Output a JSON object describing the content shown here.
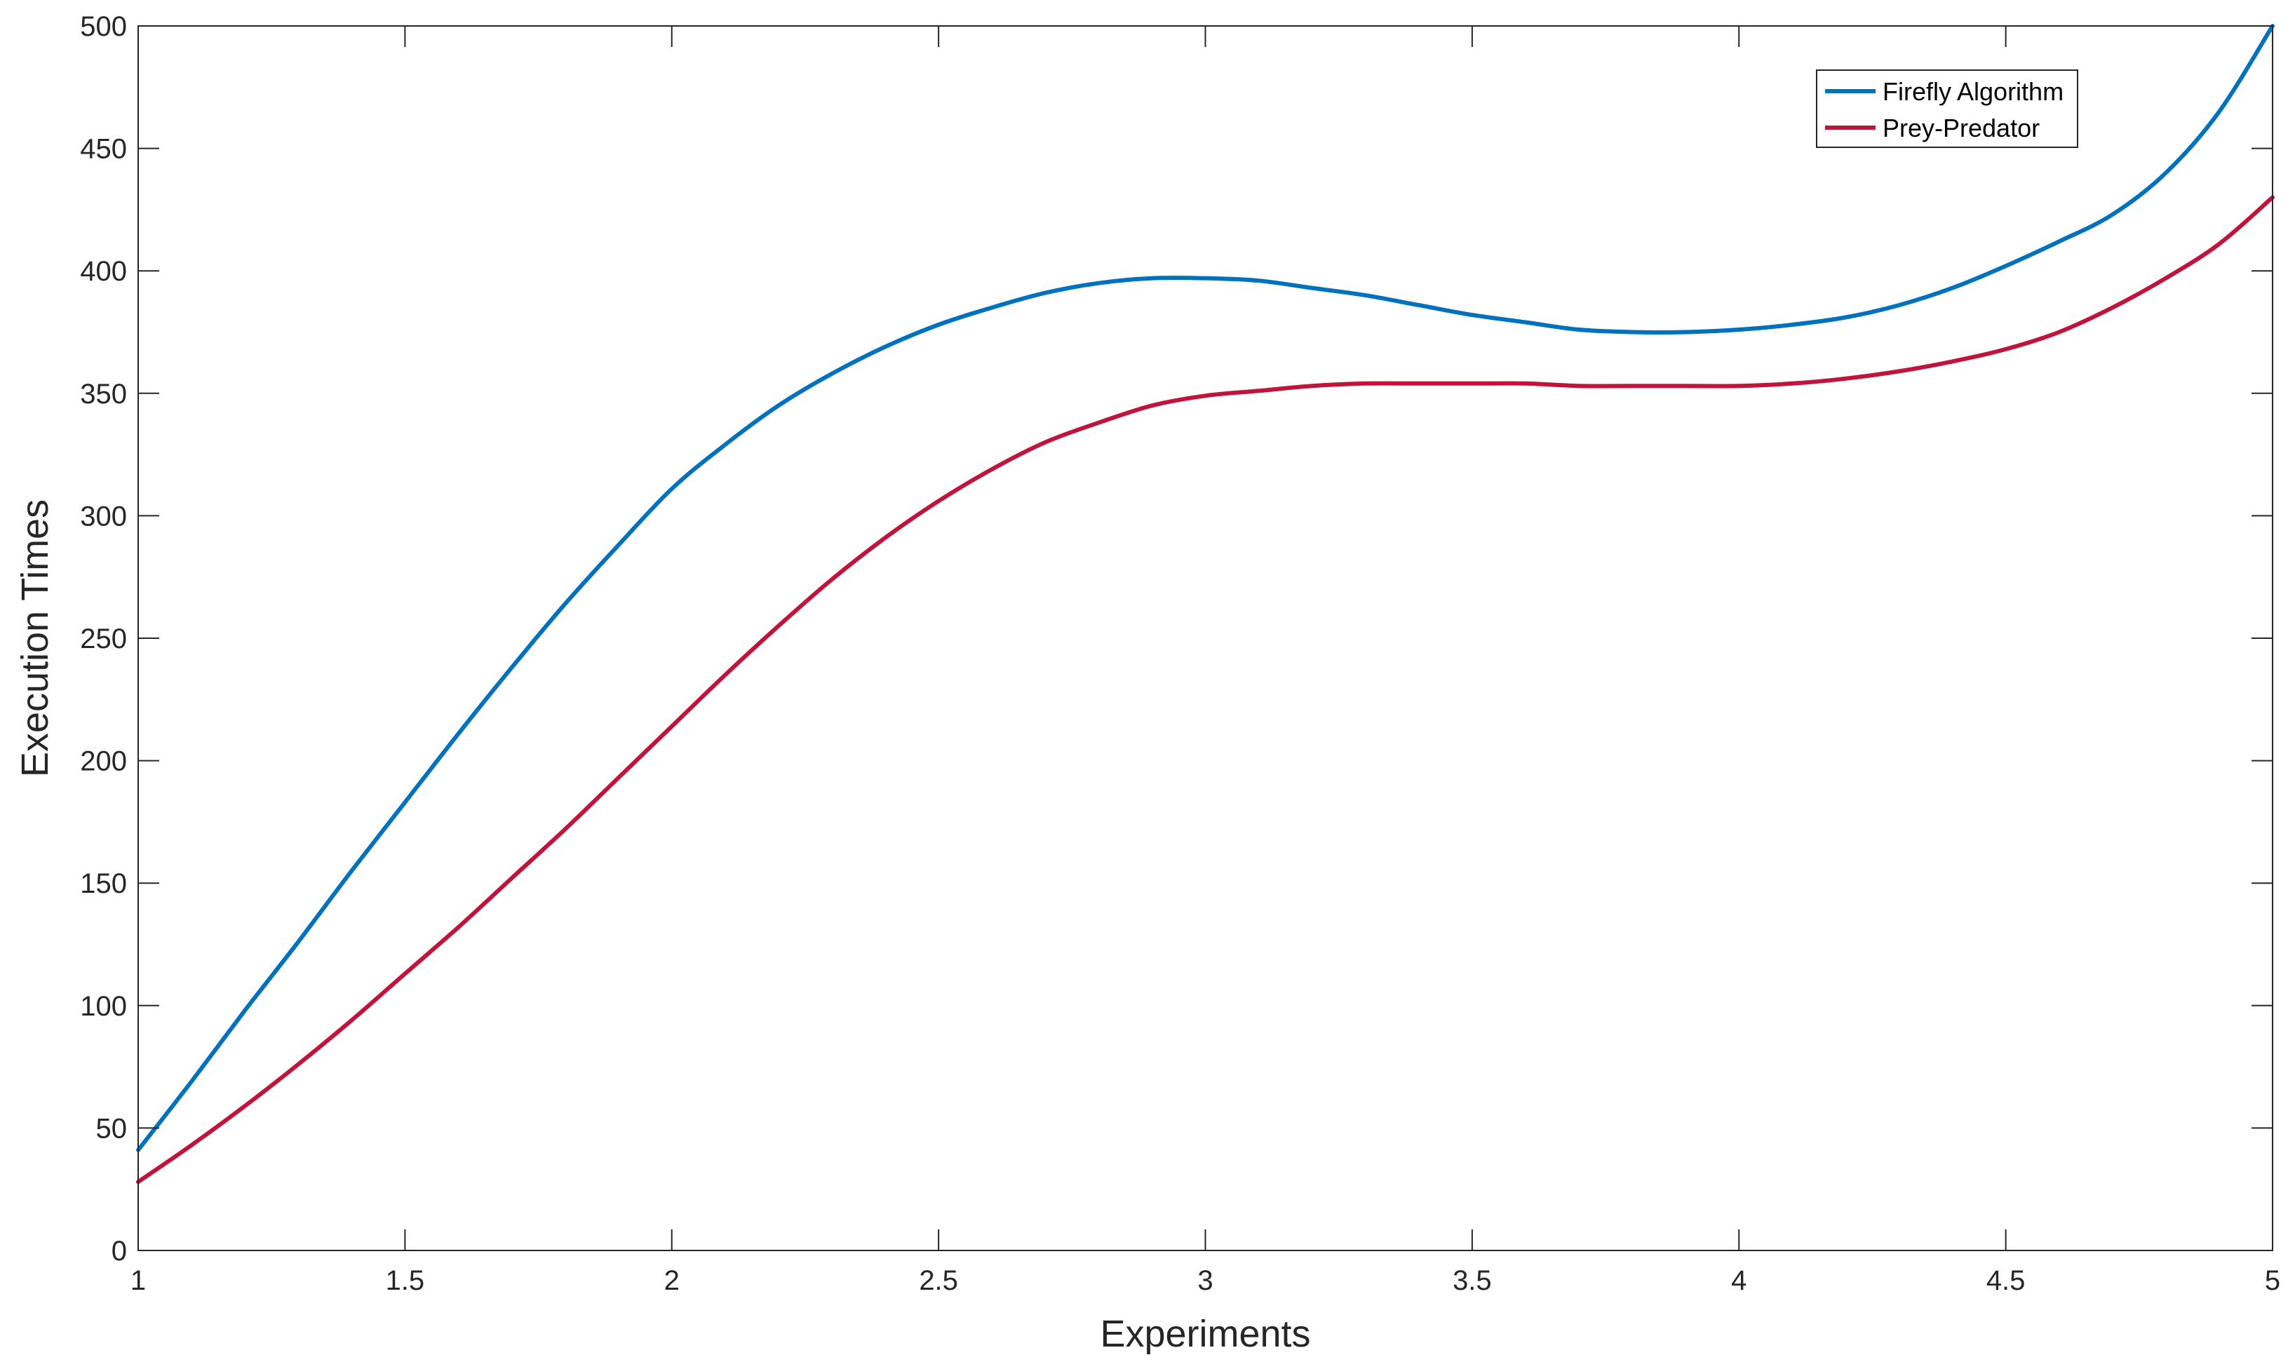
{
  "chart_data": {
    "type": "line",
    "title": "",
    "xlabel": "Experiments",
    "ylabel": "Execution Times",
    "xlim": [
      1,
      5
    ],
    "ylim": [
      0,
      500
    ],
    "xticks": [
      1,
      1.5,
      2,
      2.5,
      3,
      3.5,
      4,
      4.5,
      5
    ],
    "xtick_labels": [
      "1",
      "1.5",
      "2",
      "2.5",
      "3",
      "3.5",
      "4",
      "4.5",
      "5"
    ],
    "yticks": [
      0,
      50,
      100,
      150,
      200,
      250,
      300,
      350,
      400,
      450,
      500
    ],
    "ytick_labels": [
      "0",
      "50",
      "100",
      "150",
      "200",
      "250",
      "300",
      "350",
      "400",
      "450",
      "500"
    ],
    "grid": false,
    "legend_position": "top-right",
    "x": [
      1,
      1.1,
      1.2,
      1.3,
      1.4,
      1.5,
      1.6,
      1.7,
      1.8,
      1.9,
      2,
      2.1,
      2.2,
      2.3,
      2.4,
      2.5,
      2.6,
      2.7,
      2.8,
      2.9,
      3,
      3.1,
      3.2,
      3.3,
      3.4,
      3.5,
      3.6,
      3.7,
      3.8,
      3.9,
      4,
      4.1,
      4.2,
      4.3,
      4.4,
      4.5,
      4.6,
      4.7,
      4.8,
      4.9,
      5
    ],
    "series": [
      {
        "name": "Firefly Algorithm",
        "color": "#0072BD",
        "values": [
          41,
          69,
          98,
          126,
          155,
          183,
          211,
          238,
          264,
          288,
          311,
          329,
          345,
          358,
          369,
          378,
          385,
          391,
          395,
          397,
          397,
          396,
          393,
          390,
          386,
          382,
          379,
          376,
          375,
          375,
          376,
          378,
          381,
          386,
          393,
          402,
          412,
          423,
          440,
          465,
          500
        ]
      },
      {
        "name": "Prey-Predator",
        "color": "#C0143C",
        "values": [
          28,
          43,
          59,
          76,
          94,
          113,
          132,
          152,
          172,
          193,
          214,
          235,
          255,
          274,
          291,
          306,
          319,
          330,
          338,
          345,
          349,
          351,
          353,
          354,
          354,
          354,
          354,
          353,
          353,
          353,
          353,
          354,
          356,
          359,
          363,
          368,
          375,
          385,
          397,
          411,
          430
        ]
      }
    ]
  }
}
